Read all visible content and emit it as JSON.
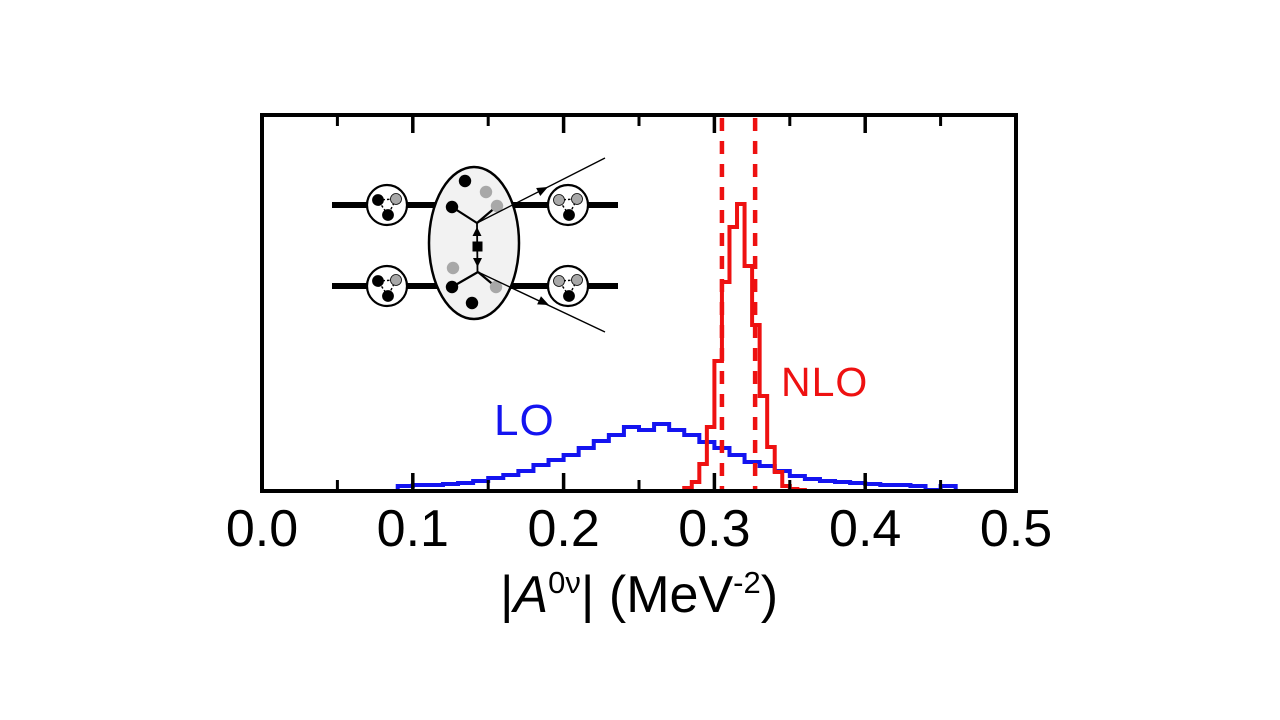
{
  "labels": {
    "lo": "LO",
    "nlo": "NLO"
  },
  "colors": {
    "lo_blue": "#1414f0",
    "nlo_red": "#ee1111",
    "frame_black": "#000000",
    "inset_blob_fill": "#f2f2f2",
    "inset_gray_dot": "#a8a8a8",
    "background": "#ffffff"
  },
  "axis_title": {
    "open_bar": "|",
    "symbol": "A",
    "superscript": "0ν",
    "close_bar": "|",
    "unit_prefix": " (MeV",
    "unit_superscript": "-2",
    "unit_suffix": ")"
  },
  "inset_icon": "neutrinoless-double-beta-decay-feynman-diagram",
  "chart_data": {
    "type": "histogram-step",
    "title": "",
    "xlabel": "|A^0nu| (MeV^-2)",
    "ylabel": "",
    "xlim": [
      0.0,
      0.5
    ],
    "ylim": [
      0,
      376
    ],
    "y_axis": "unlabeled probability density (arbitrary units)",
    "grid": false,
    "legend_position": "inline text labels inside plot",
    "x_major_ticks": [
      0.0,
      0.1,
      0.2,
      0.3,
      0.4,
      0.5
    ],
    "x_major_tick_labels": [
      "0.0",
      "0.1",
      "0.2",
      "0.3",
      "0.4",
      "0.5"
    ],
    "x_minor_ticks": [
      0.05,
      0.15,
      0.25,
      0.35,
      0.45
    ],
    "series": [
      {
        "name": "LO",
        "color": "#1414f0",
        "bin_start": 0.09,
        "bin_width": 0.01,
        "heights": [
          5,
          6,
          6,
          7,
          8,
          10,
          13,
          16,
          20,
          26,
          31,
          36,
          43,
          50,
          56,
          64,
          61,
          67,
          61,
          56,
          49,
          43,
          36,
          29,
          25,
          20,
          15,
          12,
          10,
          9,
          8,
          7,
          6,
          6,
          5,
          1,
          5
        ]
      },
      {
        "name": "NLO",
        "color": "#ee1111",
        "bin_start": 0.28,
        "bin_width": 0.005,
        "heights": [
          3,
          9,
          27,
          64,
          130,
          209,
          264,
          287,
          225,
          166,
          95,
          44,
          19,
          5,
          2,
          1
        ]
      }
    ],
    "vlines": {
      "x": [
        0.305,
        0.327
      ],
      "color": "#ee1111",
      "style": "dashed",
      "meaning": "NLO uncertainty band bounds"
    }
  }
}
